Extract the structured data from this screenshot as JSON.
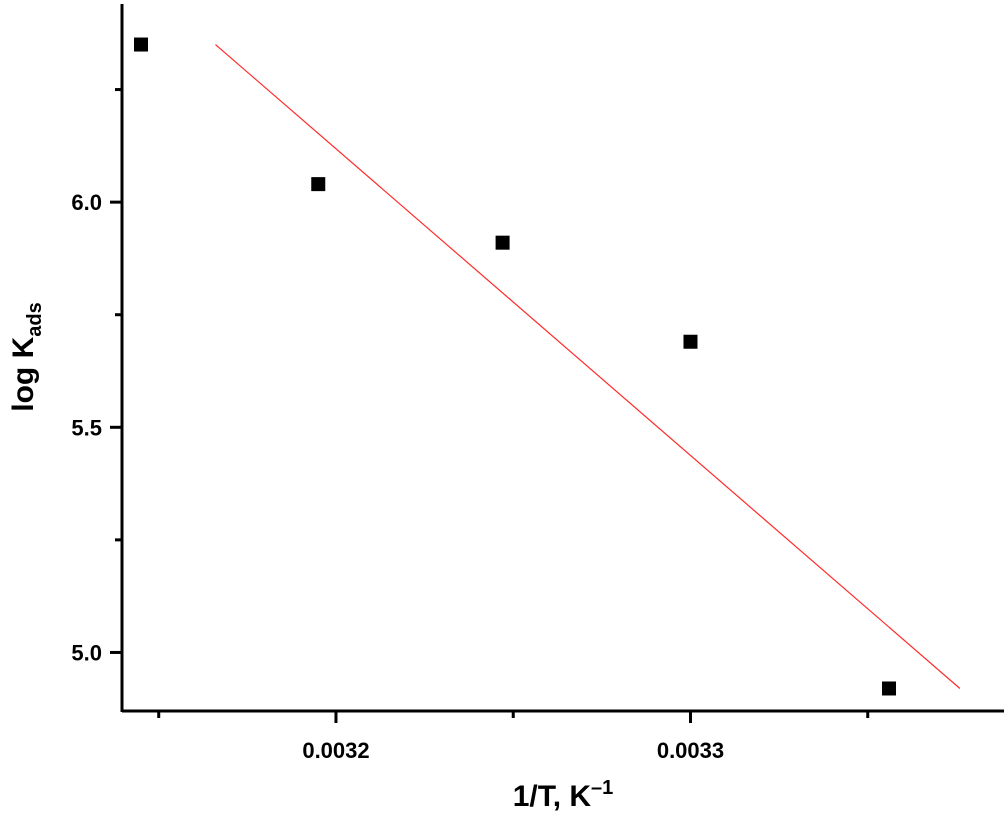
{
  "chart_data": {
    "type": "scatter",
    "title": "",
    "xlabel": {
      "main": "1/T, K",
      "superscript": "–1"
    },
    "ylabel": {
      "main": "log K",
      "subscript": "ads"
    },
    "xlim": [
      0.003145,
      0.003378
    ],
    "ylim": [
      4.87,
      6.44
    ],
    "x_ticks": [
      {
        "value": 0.0032,
        "label": "0.0032"
      },
      {
        "value": 0.0033,
        "label": "0.0033"
      }
    ],
    "x_minor_ticks": [
      0.00315,
      0.00325,
      0.00335
    ],
    "y_ticks": [
      {
        "value": 5.0,
        "label": "5.0"
      },
      {
        "value": 5.5,
        "label": "5.5"
      },
      {
        "value": 6.0,
        "label": "6.0"
      }
    ],
    "y_minor_ticks": [
      5.25,
      5.75,
      6.25
    ],
    "grid": false,
    "series": [
      {
        "marker": "square",
        "color": "#000000",
        "points": [
          {
            "x": 0.003145,
            "y": 6.35
          },
          {
            "x": 0.003195,
            "y": 6.04
          },
          {
            "x": 0.003247,
            "y": 5.91
          },
          {
            "x": 0.0033,
            "y": 5.69
          },
          {
            "x": 0.003356,
            "y": 4.92
          }
        ]
      }
    ],
    "fit_line": {
      "color": "#ff2a2a",
      "x": [
        0.003166,
        0.003376
      ],
      "y": [
        6.35,
        4.92
      ]
    }
  }
}
